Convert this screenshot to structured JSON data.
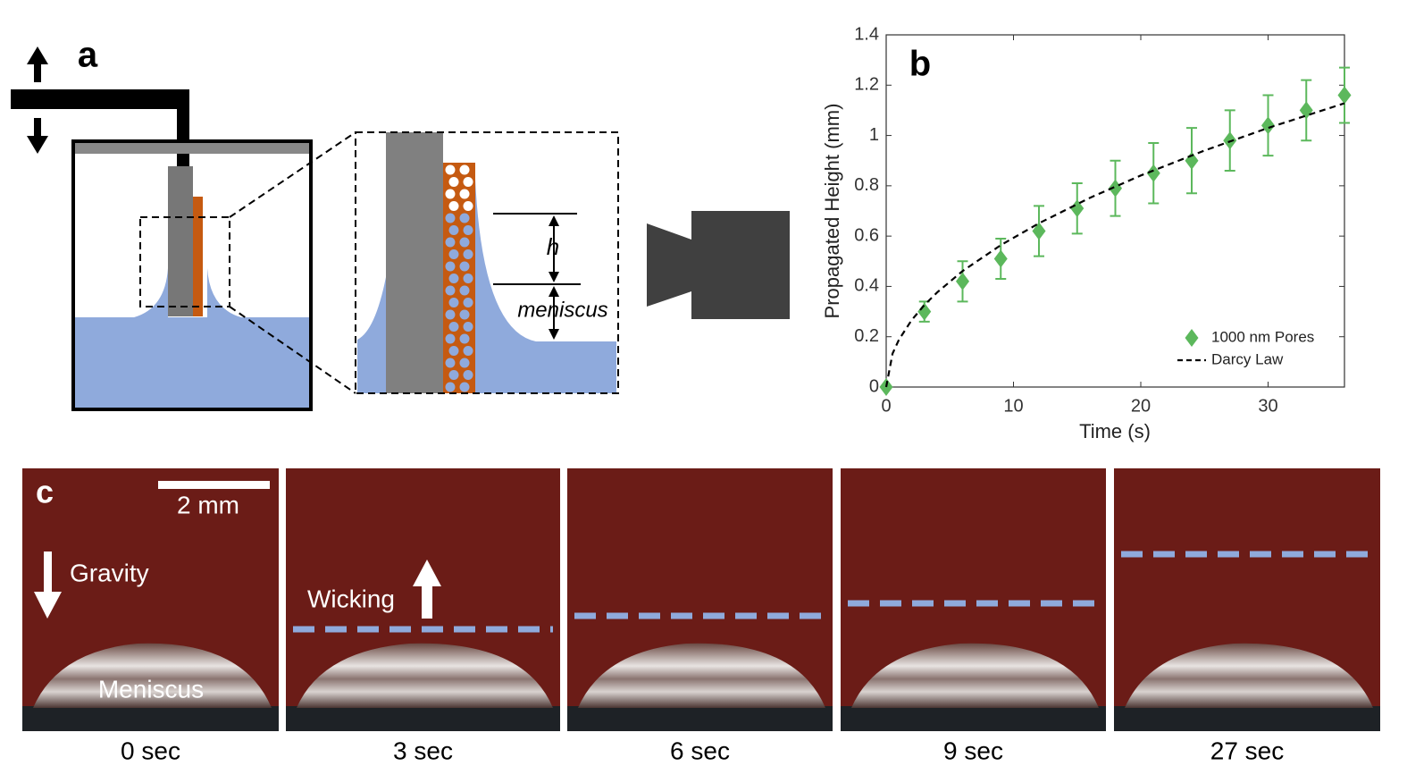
{
  "panel_a": {
    "label": "a",
    "h": "h",
    "meniscus": "meniscus"
  },
  "chart_data": {
    "type": "scatter",
    "panel_label": "b",
    "xlabel": "Time (s)",
    "ylabel": "Propagated Height (mm)",
    "xlim": [
      0,
      36
    ],
    "ylim": [
      0,
      1.4
    ],
    "xticks": [
      0,
      10,
      20,
      30
    ],
    "yticks": [
      0,
      0.2,
      0.4,
      0.6,
      0.8,
      1,
      1.2,
      1.4
    ],
    "legend": "lower right",
    "series": [
      {
        "name": "1000 nm Pores",
        "color": "#5cb85c",
        "x": [
          0,
          3,
          6,
          9,
          12,
          15,
          18,
          21,
          24,
          27,
          30,
          33,
          36
        ],
        "values": [
          0,
          0.3,
          0.42,
          0.51,
          0.62,
          0.71,
          0.79,
          0.85,
          0.9,
          0.98,
          1.04,
          1.1,
          1.16
        ],
        "errors": [
          0,
          0.04,
          0.08,
          0.08,
          0.1,
          0.1,
          0.11,
          0.12,
          0.13,
          0.12,
          0.12,
          0.12,
          0.11
        ]
      },
      {
        "name": "Darcy Law",
        "type": "line",
        "color": "#000000",
        "x": [
          0,
          0.5,
          1,
          2,
          3,
          4,
          6,
          9,
          12,
          16,
          20,
          25,
          30,
          36
        ],
        "values": [
          0,
          0.133,
          0.188,
          0.266,
          0.326,
          0.376,
          0.461,
          0.564,
          0.651,
          0.752,
          0.841,
          0.94,
          1.03,
          1.128
        ]
      }
    ]
  },
  "panel_c": {
    "label": "c",
    "scale_bar": "2 mm",
    "gravity": "Gravity",
    "wicking": "Wicking",
    "meniscus": "Meniscus",
    "frames": [
      "0 sec",
      "3 sec",
      "6 sec",
      "9 sec",
      "27 sec"
    ]
  }
}
